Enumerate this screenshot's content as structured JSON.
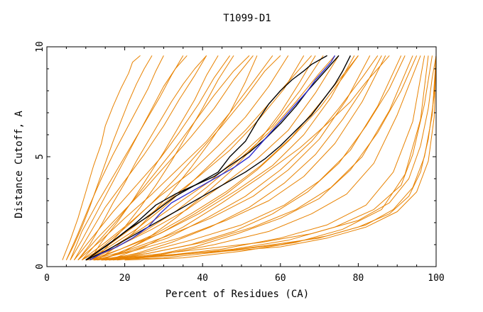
{
  "chart_data": {
    "type": "line",
    "title": "T1099-D1",
    "xlabel": "Percent of Residues (CA)",
    "ylabel": "Distance Cutoff, A",
    "xlim": [
      0,
      100
    ],
    "ylim": [
      0,
      10
    ],
    "x_ticks": [
      0,
      20,
      40,
      60,
      80,
      100
    ],
    "x_tick_labels": [
      "0",
      "20",
      "40",
      "60",
      "80",
      "100"
    ],
    "y_ticks": [
      0,
      5,
      10
    ],
    "y_tick_labels": [
      "0",
      "5",
      "10"
    ],
    "grid": false,
    "background_series_color": "#e88200",
    "highlight_color": "#000000",
    "best_color": "#3030d0",
    "series": [
      {
        "role": "background",
        "x": [
          4,
          6,
          8,
          10,
          12,
          14,
          15,
          17,
          19,
          21,
          22,
          24
        ],
        "y": [
          0.3,
          1.2,
          2.2,
          3.4,
          4.6,
          5.6,
          6.4,
          7.3,
          8.1,
          8.8,
          9.3,
          9.6
        ]
      },
      {
        "role": "background",
        "x": [
          5,
          8,
          11,
          14,
          17,
          20,
          23,
          26,
          28,
          30
        ],
        "y": [
          0.3,
          1.5,
          2.8,
          4.0,
          5.1,
          6.1,
          7.1,
          8.1,
          8.9,
          9.6
        ]
      },
      {
        "role": "background",
        "x": [
          6,
          9,
          13,
          17,
          21,
          25,
          29,
          32,
          35
        ],
        "y": [
          0.3,
          1.6,
          2.9,
          4.1,
          5.3,
          6.5,
          7.7,
          8.7,
          9.6
        ]
      },
      {
        "role": "background",
        "x": [
          7,
          11,
          15,
          20,
          25,
          30,
          34,
          38,
          41
        ],
        "y": [
          0.3,
          1.5,
          2.7,
          3.9,
          5.1,
          6.4,
          7.6,
          8.7,
          9.6
        ]
      },
      {
        "role": "background",
        "x": [
          7,
          12,
          17,
          23,
          29,
          34,
          39,
          43,
          47
        ],
        "y": [
          0.3,
          1.4,
          2.5,
          3.7,
          4.9,
          6.1,
          7.4,
          8.6,
          9.6
        ]
      },
      {
        "role": "background",
        "x": [
          8,
          13,
          19,
          25,
          31,
          37,
          43,
          48,
          53
        ],
        "y": [
          0.3,
          1.3,
          2.4,
          3.5,
          4.7,
          5.9,
          7.2,
          8.5,
          9.6
        ]
      },
      {
        "role": "background",
        "x": [
          8,
          14,
          20,
          27,
          34,
          41,
          47,
          53,
          58
        ],
        "y": [
          0.3,
          1.2,
          2.2,
          3.3,
          4.5,
          5.7,
          7.0,
          8.4,
          9.6
        ]
      },
      {
        "role": "background",
        "x": [
          9,
          15,
          22,
          29,
          37,
          44,
          51,
          57,
          62
        ],
        "y": [
          0.3,
          1.1,
          2.1,
          3.2,
          4.3,
          5.5,
          6.8,
          8.2,
          9.6
        ]
      },
      {
        "role": "background",
        "x": [
          9,
          16,
          23,
          31,
          39,
          47,
          54,
          61,
          66
        ],
        "y": [
          0.3,
          1.0,
          1.9,
          3.0,
          4.1,
          5.3,
          6.6,
          8.1,
          9.6
        ]
      },
      {
        "role": "background",
        "x": [
          10,
          17,
          25,
          33,
          42,
          50,
          58,
          65,
          71
        ],
        "y": [
          0.3,
          0.9,
          1.8,
          2.8,
          3.9,
          5.1,
          6.4,
          8.0,
          9.6
        ]
      },
      {
        "role": "background",
        "x": [
          10,
          18,
          27,
          36,
          45,
          54,
          62,
          69,
          75
        ],
        "y": [
          0.3,
          0.9,
          1.7,
          2.6,
          3.7,
          4.9,
          6.2,
          7.9,
          9.6
        ]
      },
      {
        "role": "background",
        "x": [
          11,
          19,
          29,
          39,
          49,
          58,
          66,
          73,
          79
        ],
        "y": [
          0.3,
          0.8,
          1.5,
          2.4,
          3.5,
          4.6,
          6.0,
          7.7,
          9.6
        ]
      },
      {
        "role": "background",
        "x": [
          11,
          20,
          31,
          42,
          53,
          62,
          70,
          77,
          83
        ],
        "y": [
          0.3,
          0.7,
          1.4,
          2.2,
          3.2,
          4.4,
          5.8,
          7.6,
          9.6
        ]
      },
      {
        "role": "background",
        "x": [
          12,
          22,
          34,
          46,
          57,
          66,
          74,
          81,
          87
        ],
        "y": [
          0.3,
          0.7,
          1.3,
          2.1,
          3.0,
          4.1,
          5.6,
          7.5,
          9.6
        ]
      },
      {
        "role": "background",
        "x": [
          13,
          24,
          37,
          50,
          61,
          70,
          78,
          85,
          91
        ],
        "y": [
          0.3,
          0.6,
          1.2,
          1.9,
          2.8,
          3.9,
          5.3,
          7.3,
          9.6
        ]
      },
      {
        "role": "background",
        "x": [
          14,
          26,
          40,
          53,
          64,
          73,
          81,
          88,
          94
        ],
        "y": [
          0.3,
          0.6,
          1.1,
          1.8,
          2.6,
          3.6,
          5.0,
          7.1,
          9.6
        ]
      },
      {
        "role": "background",
        "x": [
          15,
          28,
          43,
          57,
          68,
          77,
          84,
          90,
          96
        ],
        "y": [
          0.3,
          0.5,
          1.0,
          1.6,
          2.4,
          3.3,
          4.7,
          6.9,
          9.6
        ]
      },
      {
        "role": "background",
        "x": [
          8,
          11,
          14,
          17,
          20,
          23,
          26,
          29,
          32,
          35,
          38,
          41
        ],
        "y": [
          0.3,
          1.0,
          1.9,
          2.9,
          3.8,
          4.8,
          5.7,
          6.6,
          7.5,
          8.3,
          9.0,
          9.6
        ]
      },
      {
        "role": "background",
        "x": [
          9,
          13,
          18,
          23,
          28,
          33,
          38,
          43,
          48,
          52
        ],
        "y": [
          0.3,
          1.1,
          2.1,
          3.2,
          4.3,
          5.4,
          6.6,
          7.8,
          8.9,
          9.6
        ]
      },
      {
        "role": "background",
        "x": [
          10,
          15,
          21,
          27,
          33,
          39,
          45,
          51,
          56,
          60
        ],
        "y": [
          0.3,
          1.0,
          1.9,
          2.9,
          4.0,
          5.2,
          6.4,
          7.7,
          8.9,
          9.6
        ]
      },
      {
        "role": "background",
        "x": [
          10,
          16,
          23,
          30,
          37,
          44,
          51,
          58,
          64,
          68
        ],
        "y": [
          0.3,
          0.9,
          1.7,
          2.7,
          3.8,
          5.0,
          6.2,
          7.6,
          8.8,
          9.6
        ]
      },
      {
        "role": "background",
        "x": [
          11,
          17,
          25,
          33,
          41,
          49,
          57,
          64,
          70,
          74
        ],
        "y": [
          0.3,
          0.8,
          1.6,
          2.5,
          3.6,
          4.8,
          6.1,
          7.5,
          8.8,
          9.6
        ]
      },
      {
        "role": "background",
        "x": [
          12,
          19,
          28,
          37,
          46,
          55,
          63,
          70,
          76,
          80
        ],
        "y": [
          0.3,
          0.8,
          1.5,
          2.4,
          3.4,
          4.6,
          5.9,
          7.4,
          8.7,
          9.6
        ]
      },
      {
        "role": "background",
        "x": [
          13,
          21,
          31,
          41,
          51,
          60,
          68,
          75,
          81,
          85
        ],
        "y": [
          0.3,
          0.7,
          1.3,
          2.2,
          3.2,
          4.4,
          5.7,
          7.2,
          8.6,
          9.6
        ]
      },
      {
        "role": "background",
        "x": [
          13,
          17,
          22,
          27,
          32,
          37,
          42,
          47,
          51,
          54
        ],
        "y": [
          0.3,
          0.8,
          1.5,
          2.4,
          3.4,
          4.5,
          5.7,
          7.0,
          8.4,
          9.6
        ]
      },
      {
        "role": "background",
        "x": [
          14,
          20,
          26,
          33,
          40,
          47,
          54,
          60,
          65,
          69
        ],
        "y": [
          0.3,
          0.7,
          1.3,
          2.2,
          3.2,
          4.3,
          5.6,
          7.0,
          8.4,
          9.6
        ]
      },
      {
        "role": "background",
        "x": [
          15,
          23,
          32,
          42,
          52,
          61,
          69,
          76,
          82,
          86
        ],
        "y": [
          0.3,
          0.6,
          1.1,
          1.8,
          2.7,
          3.8,
          5.1,
          6.7,
          8.3,
          9.6
        ]
      },
      {
        "role": "background",
        "x": [
          16,
          26,
          37,
          48,
          58,
          67,
          75,
          82,
          88,
          92
        ],
        "y": [
          0.3,
          0.6,
          1.0,
          1.6,
          2.4,
          3.4,
          4.7,
          6.4,
          8.1,
          9.6
        ]
      },
      {
        "role": "background",
        "x": [
          12,
          16,
          20,
          24,
          28,
          32,
          36,
          40,
          44,
          48
        ],
        "y": [
          0.3,
          1.0,
          1.8,
          2.7,
          3.7,
          4.8,
          6.0,
          7.2,
          8.5,
          9.6
        ]
      },
      {
        "role": "background",
        "x": [
          11,
          14,
          18,
          22,
          26,
          30,
          34,
          38,
          41,
          44
        ],
        "y": [
          0.3,
          1.1,
          2.0,
          3.0,
          4.1,
          5.2,
          6.4,
          7.6,
          8.7,
          9.6
        ]
      },
      {
        "role": "background",
        "x": [
          6,
          9,
          12,
          15,
          18,
          21,
          24,
          27,
          30,
          33,
          36
        ],
        "y": [
          0.3,
          1.2,
          2.2,
          3.2,
          4.2,
          5.2,
          6.2,
          7.2,
          8.2,
          9.0,
          9.6
        ]
      },
      {
        "role": "background",
        "x": [
          14,
          22,
          30,
          38,
          46,
          54,
          62,
          70,
          76,
          80
        ],
        "y": [
          0.3,
          0.9,
          1.6,
          2.4,
          3.3,
          4.4,
          5.7,
          7.2,
          8.6,
          9.6
        ]
      },
      {
        "role": "background",
        "x": [
          17,
          27,
          38,
          49,
          60,
          70,
          78,
          85,
          91,
          95
        ],
        "y": [
          0.3,
          0.5,
          0.9,
          1.5,
          2.2,
          3.1,
          4.4,
          6.1,
          8.0,
          9.6
        ]
      },
      {
        "role": "background",
        "x": [
          18,
          30,
          45,
          60,
          72,
          82,
          89,
          94,
          97
        ],
        "y": [
          0.3,
          0.5,
          0.8,
          1.3,
          1.9,
          2.8,
          4.3,
          6.6,
          9.6
        ]
      },
      {
        "role": "background",
        "x": [
          20,
          35,
          50,
          64,
          76,
          86,
          92,
          96,
          98
        ],
        "y": [
          0.3,
          0.4,
          0.7,
          1.1,
          1.7,
          2.6,
          4.2,
          6.7,
          9.6
        ]
      },
      {
        "role": "background",
        "x": [
          16,
          32,
          48,
          62,
          74,
          84,
          91,
          94,
          97,
          99
        ],
        "y": [
          0.3,
          0.5,
          0.8,
          1.2,
          1.8,
          2.6,
          3.7,
          5.1,
          7.4,
          9.6
        ]
      },
      {
        "role": "background",
        "x": [
          10,
          25,
          40,
          55,
          68,
          80,
          88,
          93,
          96,
          98,
          99,
          100
        ],
        "y": [
          0.3,
          0.5,
          0.8,
          1.1,
          1.5,
          2.1,
          2.9,
          4.0,
          5.5,
          7.2,
          8.6,
          9.6
        ]
      },
      {
        "role": "background",
        "x": [
          12,
          28,
          45,
          60,
          72,
          82,
          89,
          94,
          97,
          99,
          100
        ],
        "y": [
          0.3,
          0.5,
          0.7,
          1.0,
          1.4,
          1.9,
          2.6,
          3.6,
          5.0,
          6.9,
          9.6
        ]
      },
      {
        "role": "background",
        "x": [
          14,
          30,
          46,
          60,
          72,
          82,
          90,
          95,
          98,
          99.5,
          100
        ],
        "y": [
          0.3,
          0.4,
          0.7,
          0.9,
          1.3,
          1.8,
          2.5,
          3.4,
          4.8,
          6.8,
          9.6
        ]
      },
      {
        "role": "background",
        "x": [
          15,
          30,
          45,
          58,
          70,
          80,
          88,
          93,
          96,
          98,
          99.5,
          100
        ],
        "y": [
          0.3,
          0.5,
          0.7,
          1.0,
          1.3,
          1.8,
          2.4,
          3.2,
          4.3,
          5.8,
          7.8,
          9.6
        ]
      },
      {
        "role": "background",
        "x": [
          100,
          100,
          100
        ],
        "y": [
          0.3,
          5.0,
          9.6
        ]
      },
      {
        "role": "background",
        "x": [
          16,
          25,
          35,
          45,
          55,
          65,
          72,
          78,
          82,
          85,
          87,
          88
        ],
        "y": [
          0.3,
          0.9,
          1.8,
          2.9,
          4.1,
          5.4,
          6.5,
          7.5,
          8.4,
          9.0,
          9.4,
          9.6
        ]
      },
      {
        "role": "background",
        "x": [
          5,
          7,
          9,
          11,
          13,
          15,
          17,
          19,
          21,
          23,
          25,
          27
        ],
        "y": [
          0.3,
          1.0,
          1.8,
          2.7,
          3.7,
          4.7,
          5.7,
          6.6,
          7.5,
          8.3,
          9.0,
          9.6
        ]
      },
      {
        "role": "highlight",
        "x": [
          10,
          14,
          18,
          23,
          28,
          33,
          38,
          43,
          47,
          52,
          56,
          60,
          64,
          67,
          70,
          72,
          74,
          75
        ],
        "y": [
          0.3,
          0.8,
          1.3,
          2.0,
          2.8,
          3.3,
          3.7,
          4.1,
          4.6,
          5.2,
          5.8,
          6.5,
          7.3,
          8.0,
          8.6,
          9.0,
          9.4,
          9.6
        ]
      },
      {
        "role": "highlight",
        "x": [
          10,
          15,
          20,
          25,
          30,
          35,
          41,
          46,
          51,
          56,
          60,
          64,
          68,
          71,
          74,
          76,
          78
        ],
        "y": [
          0.3,
          0.7,
          1.2,
          1.7,
          2.2,
          2.7,
          3.3,
          3.8,
          4.3,
          4.9,
          5.5,
          6.2,
          6.9,
          7.6,
          8.3,
          8.9,
          9.6
        ]
      },
      {
        "role": "highlight",
        "x": [
          10,
          15,
          21,
          27,
          33,
          39,
          44,
          47,
          51,
          54,
          57,
          60,
          63,
          66,
          68,
          70,
          72
        ],
        "y": [
          0.3,
          0.9,
          1.7,
          2.4,
          3.2,
          3.8,
          4.3,
          5.0,
          5.7,
          6.6,
          7.4,
          8.0,
          8.5,
          8.9,
          9.2,
          9.4,
          9.6
        ]
      },
      {
        "role": "best",
        "x": [
          11,
          14,
          18,
          22,
          26,
          29,
          32,
          36,
          40,
          44,
          48,
          52,
          55,
          58,
          61,
          64,
          67,
          69,
          71,
          73,
          74
        ],
        "y": [
          0.3,
          0.6,
          0.9,
          1.3,
          1.8,
          2.4,
          2.9,
          3.3,
          3.7,
          4.1,
          4.5,
          5.0,
          5.6,
          6.2,
          6.8,
          7.4,
          8.0,
          8.5,
          8.9,
          9.3,
          9.6
        ]
      }
    ]
  }
}
